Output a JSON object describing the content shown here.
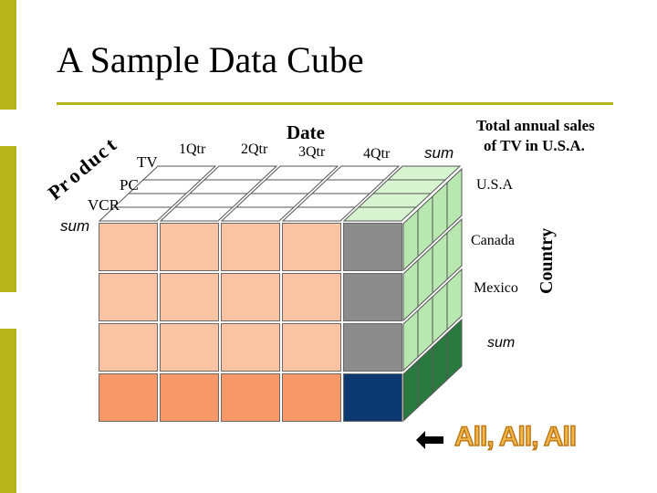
{
  "slide": {
    "title": "A Sample Data Cube",
    "accent_color": "#b5b51a"
  },
  "axes": {
    "date_label": "Date",
    "product_label": "Product",
    "country_label": "Country"
  },
  "dates": [
    "1Qtr",
    "2Qtr",
    "3Qtr",
    "4Qtr",
    "sum"
  ],
  "products": [
    "TV",
    "PC",
    "VCR",
    "sum"
  ],
  "countries": [
    "U.S.A",
    "Canada",
    "Mexico",
    "sum"
  ],
  "callout": {
    "text_line1": "Total annual sales",
    "text_line2": "of TV in U.S.A."
  },
  "footer": {
    "arrow_icon": "left-arrow-icon",
    "all_label": "All, All, All"
  },
  "colors": {
    "front_cell": "#fac4a4",
    "front_bottom": "#f89868",
    "sum_column": "#8c8c8c",
    "grand_total": "#0c3a70",
    "side_light": "#b8e8b0",
    "side_dark": "#2a7a40",
    "top_white": "#ffffff",
    "top_sum": "#d6f5d0"
  }
}
